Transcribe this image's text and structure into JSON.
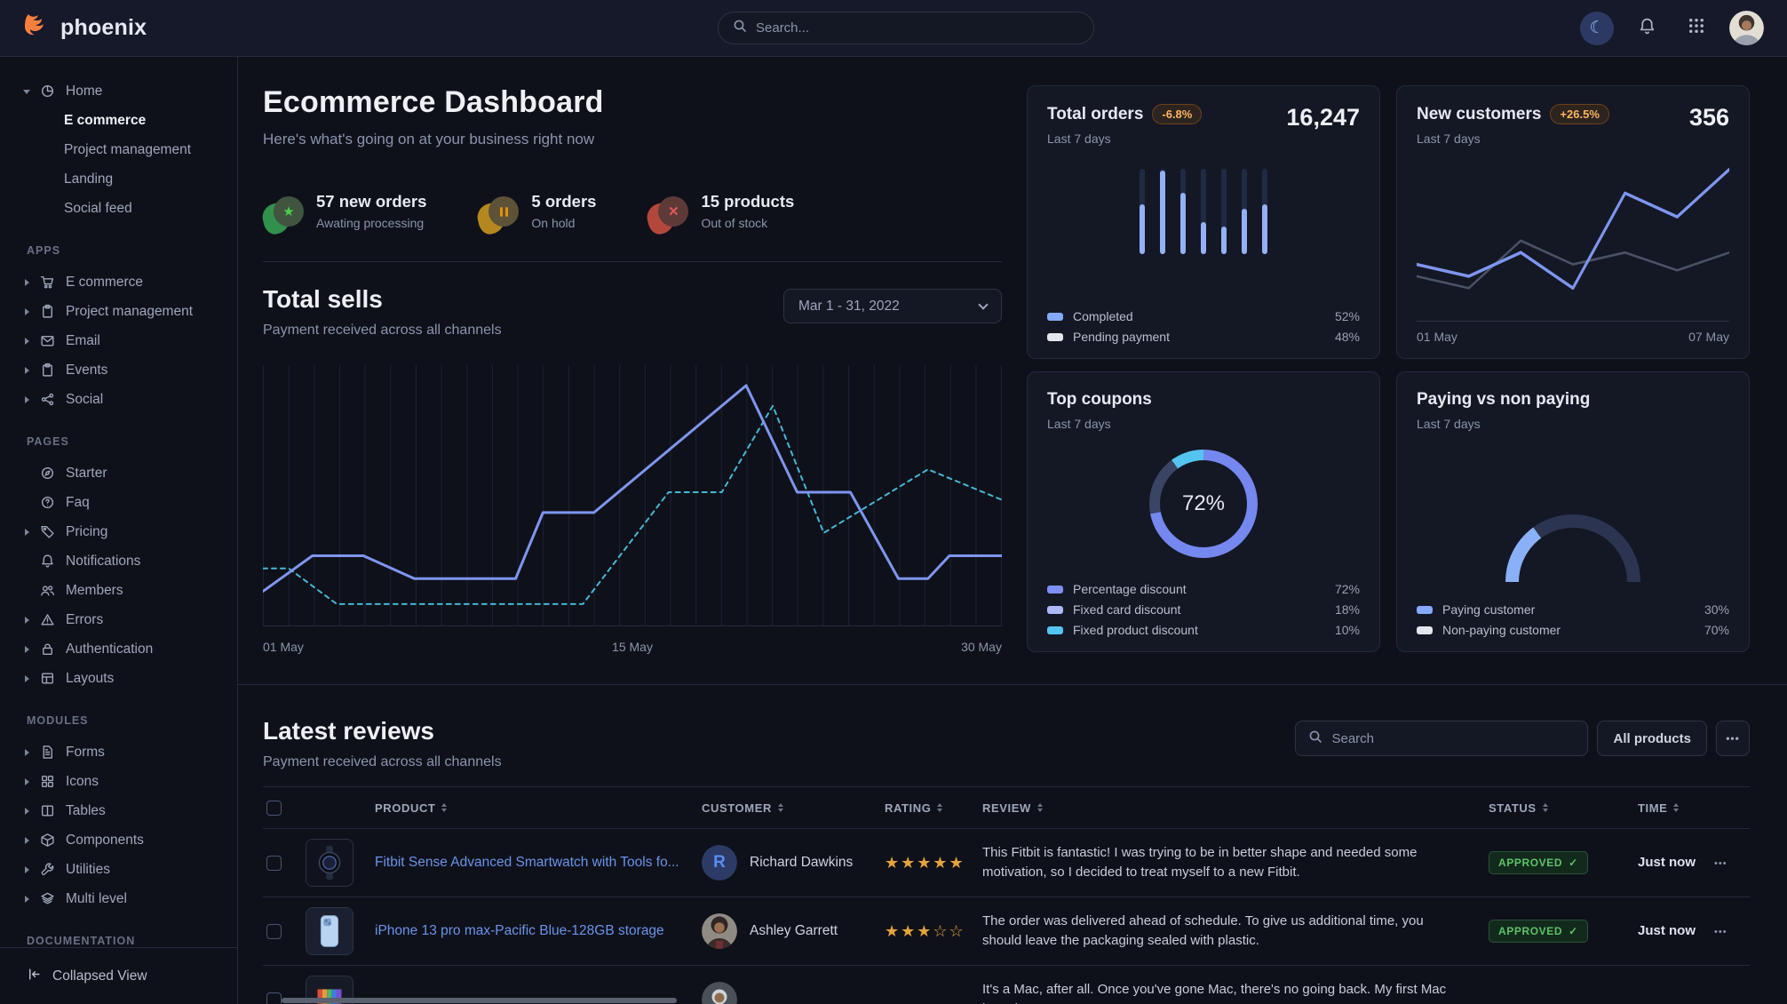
{
  "navbar": {
    "brand": "phoenix",
    "search_placeholder": "Search..."
  },
  "sidebar": {
    "sections": [
      {
        "label": "",
        "items": [
          {
            "icon": "pie-chart-icon",
            "label": "Home",
            "caret": "down",
            "children": [
              {
                "label": "E commerce",
                "active": true
              },
              {
                "label": "Project management"
              },
              {
                "label": "Landing"
              },
              {
                "label": "Social feed"
              }
            ]
          }
        ]
      },
      {
        "label": "APPS",
        "items": [
          {
            "icon": "cart-icon",
            "label": "E commerce",
            "caret": "right"
          },
          {
            "icon": "clipboard-icon",
            "label": "Project management",
            "caret": "right"
          },
          {
            "icon": "mail-icon",
            "label": "Email",
            "caret": "right"
          },
          {
            "icon": "clipboard-icon",
            "label": "Events",
            "caret": "right"
          },
          {
            "icon": "share-icon",
            "label": "Social",
            "caret": "right"
          }
        ]
      },
      {
        "label": "PAGES",
        "items": [
          {
            "icon": "compass-icon",
            "label": "Starter"
          },
          {
            "icon": "question-circle-icon",
            "label": "Faq"
          },
          {
            "icon": "tag-icon",
            "label": "Pricing",
            "caret": "right"
          },
          {
            "icon": "bell-icon",
            "label": "Notifications"
          },
          {
            "icon": "users-icon",
            "label": "Members"
          },
          {
            "icon": "warning-icon",
            "label": "Errors",
            "caret": "right"
          },
          {
            "icon": "lock-icon",
            "label": "Authentication",
            "caret": "right"
          },
          {
            "icon": "layout-icon",
            "label": "Layouts",
            "caret": "right"
          }
        ]
      },
      {
        "label": "MODULES",
        "items": [
          {
            "icon": "file-text-icon",
            "label": "Forms",
            "caret": "right"
          },
          {
            "icon": "icons-grid-icon",
            "label": "Icons",
            "caret": "right"
          },
          {
            "icon": "columns-icon",
            "label": "Tables",
            "caret": "right"
          },
          {
            "icon": "box-icon",
            "label": "Components",
            "caret": "right"
          },
          {
            "icon": "wrench-icon",
            "label": "Utilities",
            "caret": "right"
          },
          {
            "icon": "layers-icon",
            "label": "Multi level",
            "caret": "right"
          }
        ]
      },
      {
        "label": "DOCUMENTATION",
        "items": []
      }
    ],
    "footer": {
      "icon": "collapse-icon",
      "label": "Collapsed View"
    }
  },
  "page": {
    "title": "Ecommerce Dashboard",
    "subtitle": "Here's what's going on at your business right now"
  },
  "stats": [
    {
      "icon": "star-icon",
      "tone": "success",
      "value_label": "57 new orders",
      "caption": "Awating processing"
    },
    {
      "icon": "pause-icon",
      "tone": "warning",
      "value_label": "5 orders",
      "caption": "On hold"
    },
    {
      "icon": "x-icon",
      "tone": "danger",
      "value_label": "15 products",
      "caption": "Out of stock"
    }
  ],
  "total_sells": {
    "title": "Total sells",
    "subtitle": "Payment received across all channels",
    "date_range": "Mar 1 - 31, 2022",
    "chart_data": {
      "type": "line",
      "x_ticks": [
        "01 May",
        "15 May",
        "30 May"
      ],
      "gridlines": 30,
      "series": [
        {
          "name": "solid-primary",
          "color": "#7e96f0",
          "style": "solid",
          "points_pct": [
            [
              0,
              89
            ],
            [
              6.7,
              75
            ],
            [
              13.6,
              75
            ],
            [
              20.5,
              84
            ],
            [
              34.2,
              84
            ],
            [
              37.9,
              58
            ],
            [
              44.8,
              58
            ],
            [
              65.4,
              8
            ],
            [
              72.3,
              50
            ],
            [
              79.5,
              50
            ],
            [
              86,
              84
            ],
            [
              90,
              84
            ],
            [
              92.9,
              75
            ],
            [
              100,
              75
            ]
          ]
        },
        {
          "name": "dashed-secondary",
          "color": "#45b8d8",
          "style": "dashed",
          "points_pct": [
            [
              0,
              80
            ],
            [
              3.5,
              80
            ],
            [
              10,
              94
            ],
            [
              43.3,
              94
            ],
            [
              54.9,
              50
            ],
            [
              62.1,
              50
            ],
            [
              69,
              16
            ],
            [
              75.9,
              66
            ],
            [
              90,
              41
            ],
            [
              100,
              53
            ]
          ]
        }
      ]
    }
  },
  "cards": {
    "total_orders": {
      "title": "Total orders",
      "badge": "-6.8%",
      "value": "16,247",
      "period": "Last 7 days",
      "chart_data": {
        "type": "bar",
        "values_pct": [
          58,
          98,
          72,
          38,
          32,
          53,
          58
        ],
        "fill": "#92b1f7",
        "track": "#1f2a45"
      },
      "legend": [
        {
          "label": "Completed",
          "value": "52%",
          "color": "#85a9ff"
        },
        {
          "label": "Pending payment",
          "value": "48%",
          "color": "#e3e6ed"
        }
      ]
    },
    "new_customers": {
      "title": "New customers",
      "badge": "+26.5%",
      "value": "356",
      "period": "Last 7 days",
      "chart_data": {
        "type": "line",
        "x_ticks": [
          "01 May",
          "07 May"
        ],
        "series": [
          {
            "name": "previous",
            "color": "#4b5268",
            "y_pct": [
              76,
              84,
              52,
              68,
              60,
              72,
              60
            ]
          },
          {
            "name": "current",
            "color": "#7e96f0",
            "y_pct": [
              68,
              76,
              60,
              84,
              20,
              36,
              4
            ]
          }
        ]
      }
    },
    "top_coupons": {
      "title": "Top coupons",
      "period": "Last 7 days",
      "center_value": "72%",
      "chart_data": {
        "type": "pie",
        "segments": [
          {
            "label": "Percentage discount",
            "value": 72,
            "color": "#7588f0"
          },
          {
            "label": "Fixed card discount",
            "value": 18,
            "color": "#3a4465"
          },
          {
            "label": "Fixed product discount",
            "value": 10,
            "color": "#54c5f0"
          }
        ]
      },
      "legend": [
        {
          "label": "Percentage discount",
          "value": "72%",
          "color": "#7d8ff2"
        },
        {
          "label": "Fixed card discount",
          "value": "18%",
          "color": "#a9baf5"
        },
        {
          "label": "Fixed product discount",
          "value": "10%",
          "color": "#54c5f0"
        }
      ]
    },
    "paying": {
      "title": "Paying vs non paying",
      "period": "Last 7 days",
      "chart_data": {
        "type": "gauge",
        "segments": [
          {
            "label": "Paying customer",
            "value": 30,
            "color": "#8ab0f8"
          },
          {
            "label": "Non-paying customer",
            "value": 70,
            "color": "#2b3551"
          }
        ]
      },
      "legend": [
        {
          "label": "Paying customer",
          "value": "30%",
          "color": "#85a9ff"
        },
        {
          "label": "Non-paying customer",
          "value": "70%",
          "color": "#e3e6ed"
        }
      ]
    }
  },
  "reviews": {
    "title": "Latest reviews",
    "subtitle": "Payment received across all channels",
    "search_placeholder": "Search",
    "filter_label": "All products",
    "more_label": "•••",
    "columns": [
      "PRODUCT",
      "CUSTOMER",
      "RATING",
      "REVIEW",
      "STATUS",
      "TIME"
    ],
    "rows": [
      {
        "product": "Fitbit Sense Advanced Smartwatch with Tools fo...",
        "thumb": "smartwatch",
        "customer": "Richard Dawkins",
        "avatar": "R",
        "rating": 5,
        "review": "This Fitbit is fantastic! I was trying to be in better shape and needed some motivation, so I decided to treat myself to a new Fitbit.",
        "status": "APPROVED",
        "time": "Just now"
      },
      {
        "product": "iPhone 13 pro max-Pacific Blue-128GB storage",
        "thumb": "phone",
        "customer": "Ashley Garrett",
        "avatar": "photo-woman",
        "rating": 3,
        "review": "The order was delivered ahead of schedule. To give us additional time, you should leave the packaging sealed with plastic.",
        "status": "APPROVED",
        "time": "Just now"
      },
      {
        "product": "",
        "thumb": "laptop",
        "customer": "",
        "avatar": "photo-hood",
        "rating": 0,
        "review": "It's a Mac, after all. Once you've gone Mac, there's no going back. My first Mac lasted",
        "status": "",
        "time": ""
      }
    ]
  }
}
